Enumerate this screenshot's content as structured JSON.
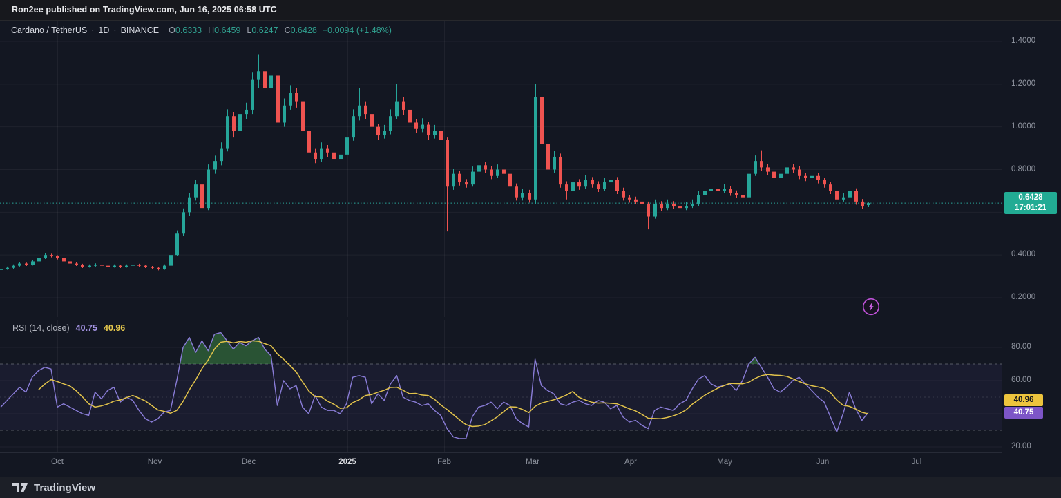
{
  "top_bar": {
    "text": "Ron2ee published on TradingView.com, Jun 16, 2025 06:58 UTC"
  },
  "header": {
    "symbol": "Cardano / TetherUS",
    "sep": "·",
    "interval": "1D",
    "exchange": "BINANCE",
    "ohlc": [
      {
        "k": "O",
        "v": "0.6333"
      },
      {
        "k": "H",
        "v": "0.6459"
      },
      {
        "k": "L",
        "v": "0.6247"
      },
      {
        "k": "C",
        "v": "0.6428"
      }
    ],
    "change": "+0.0094 (+1.48%)"
  },
  "price_scale": {
    "ticks": [
      "1.4000",
      "1.2000",
      "1.0000",
      "0.8000",
      "0.4000",
      "0.2000"
    ],
    "badge": {
      "price": "0.6428",
      "countdown": "17:01:21"
    }
  },
  "rsi_scale": {
    "ticks": [
      "80.00",
      "60.00",
      "20.00"
    ],
    "badge_ma": "40.96",
    "badge_rsi": "40.75"
  },
  "rsi_legend": {
    "label": "RSI (14, close)",
    "value_rsi": "40.75",
    "value_ma": "40.96"
  },
  "time_axis": {
    "labels": [
      "Oct",
      "Nov",
      "Dec",
      "2025",
      "Feb",
      "Mar",
      "Apr",
      "May",
      "Jun",
      "Jul"
    ],
    "emphasized": "2025"
  },
  "footer": {
    "brand": "TradingView"
  },
  "colors": {
    "background": "#131722",
    "up": "#26a69a",
    "down": "#ef5350",
    "price_line": "#2aa79a",
    "price_badge": "#22ab94",
    "rsi_line": "#8a7dd8",
    "rsi_ma_line": "#e2c34b",
    "rsi_badge": "#7d55c7",
    "rsi_ma_badge": "#edc43d",
    "overbought_fill": "rgba(76,175,80,0.40)",
    "band_fill": "rgba(133,105,223,0.07)",
    "grid": "rgba(255,255,255,0.05)",
    "level_dash": "rgba(150,153,163,0.50)"
  },
  "chart_data": [
    {
      "type": "candlestick",
      "title": "Cardano / TetherUS · 1D · BINANCE",
      "open": 0.6333,
      "high": 0.6459,
      "low": 0.6247,
      "close": 0.6428,
      "change": "+0.0094 (+1.48%)",
      "last_price": 0.6428,
      "countdown": "17:01:21",
      "x_axis": {
        "labels": [
          "Oct",
          "Nov",
          "Dec",
          "2025",
          "Feb",
          "Mar",
          "Apr",
          "May",
          "Jun",
          "Jul"
        ],
        "range": "mid-Sep 2024 → Jun 16 2025 (data), axis extends to Jul 2025"
      },
      "y_axis": {
        "ticks": [
          1.4,
          1.2,
          1.0,
          0.8,
          0.4,
          0.2
        ],
        "grid_prices": [
          1.4,
          1.2,
          1.0,
          0.8,
          0.6,
          0.4,
          0.2
        ],
        "ylim": [
          0.11,
          1.49
        ],
        "format": "0.0000"
      },
      "note": "139 candles, ~2-day aggregation of the daily series visible in the screenshot",
      "candles": [
        [
          0.33,
          0.341,
          0.326,
          0.335
        ],
        [
          0.335,
          0.346,
          0.331,
          0.34
        ],
        [
          0.34,
          0.356,
          0.336,
          0.35
        ],
        [
          0.35,
          0.366,
          0.346,
          0.36
        ],
        [
          0.36,
          0.364,
          0.349,
          0.355
        ],
        [
          0.355,
          0.376,
          0.351,
          0.37
        ],
        [
          0.37,
          0.391,
          0.366,
          0.385
        ],
        [
          0.385,
          0.408,
          0.381,
          0.4
        ],
        [
          0.4,
          0.406,
          0.389,
          0.395
        ],
        [
          0.395,
          0.399,
          0.379,
          0.385
        ],
        [
          0.385,
          0.389,
          0.364,
          0.37
        ],
        [
          0.37,
          0.374,
          0.354,
          0.36
        ],
        [
          0.36,
          0.365,
          0.349,
          0.355
        ],
        [
          0.355,
          0.359,
          0.339,
          0.345
        ],
        [
          0.345,
          0.356,
          0.341,
          0.35
        ],
        [
          0.35,
          0.361,
          0.346,
          0.355
        ],
        [
          0.355,
          0.359,
          0.344,
          0.35
        ],
        [
          0.35,
          0.354,
          0.339,
          0.345
        ],
        [
          0.345,
          0.356,
          0.341,
          0.35
        ],
        [
          0.35,
          0.354,
          0.339,
          0.345
        ],
        [
          0.345,
          0.356,
          0.341,
          0.35
        ],
        [
          0.35,
          0.361,
          0.346,
          0.355
        ],
        [
          0.355,
          0.359,
          0.344,
          0.35
        ],
        [
          0.35,
          0.354,
          0.339,
          0.345
        ],
        [
          0.345,
          0.349,
          0.334,
          0.34
        ],
        [
          0.34,
          0.344,
          0.328,
          0.335
        ],
        [
          0.335,
          0.356,
          0.331,
          0.35
        ],
        [
          0.35,
          0.412,
          0.346,
          0.4
        ],
        [
          0.4,
          0.515,
          0.395,
          0.5
        ],
        [
          0.5,
          0.618,
          0.49,
          0.6
        ],
        [
          0.6,
          0.69,
          0.585,
          0.67
        ],
        [
          0.67,
          0.752,
          0.655,
          0.73
        ],
        [
          0.73,
          0.74,
          0.6,
          0.62
        ],
        [
          0.62,
          0.824,
          0.61,
          0.8
        ],
        [
          0.8,
          0.865,
          0.78,
          0.84
        ],
        [
          0.84,
          0.927,
          0.82,
          0.9
        ],
        [
          0.9,
          1.082,
          0.885,
          1.05
        ],
        [
          1.05,
          1.07,
          0.95,
          0.98
        ],
        [
          0.98,
          1.092,
          0.96,
          1.06
        ],
        [
          1.06,
          1.113,
          1.035,
          1.08
        ],
        [
          1.08,
          1.257,
          1.06,
          1.22
        ],
        [
          1.22,
          1.34,
          1.18,
          1.26
        ],
        [
          1.26,
          1.28,
          1.15,
          1.18
        ],
        [
          1.18,
          1.277,
          1.16,
          1.24
        ],
        [
          1.24,
          1.25,
          0.96,
          1.02
        ],
        [
          1.02,
          1.133,
          1.0,
          1.1
        ],
        [
          1.1,
          1.195,
          1.08,
          1.16
        ],
        [
          1.16,
          1.18,
          1.09,
          1.12
        ],
        [
          1.12,
          1.13,
          0.955,
          0.98
        ],
        [
          0.98,
          0.99,
          0.79,
          0.88
        ],
        [
          0.88,
          0.9,
          0.83,
          0.85
        ],
        [
          0.85,
          0.927,
          0.835,
          0.9
        ],
        [
          0.9,
          0.915,
          0.86,
          0.88
        ],
        [
          0.88,
          0.895,
          0.83,
          0.85
        ],
        [
          0.85,
          0.896,
          0.835,
          0.87
        ],
        [
          0.87,
          0.979,
          0.855,
          0.95
        ],
        [
          0.95,
          1.082,
          0.935,
          1.05
        ],
        [
          1.05,
          1.18,
          1.03,
          1.1
        ],
        [
          1.1,
          1.12,
          1.035,
          1.06
        ],
        [
          1.06,
          1.075,
          0.975,
          1.0
        ],
        [
          1.0,
          1.015,
          0.94,
          0.96
        ],
        [
          0.96,
          1.009,
          0.945,
          0.98
        ],
        [
          0.98,
          1.082,
          0.965,
          1.05
        ],
        [
          1.05,
          1.2,
          1.035,
          1.12
        ],
        [
          1.12,
          1.14,
          1.055,
          1.08
        ],
        [
          1.08,
          1.095,
          1.0,
          1.02
        ],
        [
          1.02,
          1.035,
          0.97,
          0.99
        ],
        [
          0.99,
          1.04,
          0.975,
          1.01
        ],
        [
          1.01,
          1.025,
          0.94,
          0.96
        ],
        [
          0.96,
          1.009,
          0.945,
          0.98
        ],
        [
          0.98,
          0.995,
          0.92,
          0.94
        ],
        [
          0.94,
          0.95,
          0.51,
          0.72
        ],
        [
          0.72,
          0.803,
          0.705,
          0.78
        ],
        [
          0.78,
          0.795,
          0.725,
          0.74
        ],
        [
          0.74,
          0.755,
          0.715,
          0.73
        ],
        [
          0.73,
          0.814,
          0.72,
          0.79
        ],
        [
          0.79,
          0.845,
          0.775,
          0.82
        ],
        [
          0.82,
          0.835,
          0.785,
          0.8
        ],
        [
          0.8,
          0.815,
          0.755,
          0.77
        ],
        [
          0.77,
          0.824,
          0.76,
          0.8
        ],
        [
          0.8,
          0.815,
          0.765,
          0.78
        ],
        [
          0.78,
          0.795,
          0.705,
          0.72
        ],
        [
          0.72,
          0.735,
          0.655,
          0.67
        ],
        [
          0.67,
          0.711,
          0.655,
          0.69
        ],
        [
          0.69,
          0.705,
          0.645,
          0.66
        ],
        [
          0.66,
          1.2,
          0.64,
          1.14
        ],
        [
          1.14,
          1.16,
          0.9,
          0.92
        ],
        [
          0.92,
          0.94,
          0.785,
          0.8
        ],
        [
          0.8,
          0.886,
          0.785,
          0.86
        ],
        [
          0.86,
          0.875,
          0.715,
          0.73
        ],
        [
          0.73,
          0.745,
          0.66,
          0.7
        ],
        [
          0.7,
          0.762,
          0.69,
          0.74
        ],
        [
          0.74,
          0.755,
          0.705,
          0.72
        ],
        [
          0.72,
          0.773,
          0.71,
          0.75
        ],
        [
          0.75,
          0.765,
          0.715,
          0.73
        ],
        [
          0.73,
          0.745,
          0.695,
          0.71
        ],
        [
          0.71,
          0.762,
          0.7,
          0.74
        ],
        [
          0.74,
          0.773,
          0.73,
          0.75
        ],
        [
          0.75,
          0.765,
          0.685,
          0.7
        ],
        [
          0.7,
          0.715,
          0.655,
          0.67
        ],
        [
          0.67,
          0.68,
          0.645,
          0.66
        ],
        [
          0.66,
          0.673,
          0.637,
          0.65
        ],
        [
          0.65,
          0.662,
          0.627,
          0.64
        ],
        [
          0.64,
          0.65,
          0.52,
          0.58
        ],
        [
          0.58,
          0.66,
          0.57,
          0.64
        ],
        [
          0.64,
          0.652,
          0.607,
          0.62
        ],
        [
          0.62,
          0.66,
          0.61,
          0.64
        ],
        [
          0.64,
          0.652,
          0.617,
          0.63
        ],
        [
          0.63,
          0.642,
          0.607,
          0.62
        ],
        [
          0.62,
          0.649,
          0.61,
          0.63
        ],
        [
          0.63,
          0.66,
          0.62,
          0.64
        ],
        [
          0.64,
          0.7,
          0.63,
          0.68
        ],
        [
          0.68,
          0.721,
          0.67,
          0.7
        ],
        [
          0.7,
          0.732,
          0.69,
          0.71
        ],
        [
          0.71,
          0.722,
          0.687,
          0.7
        ],
        [
          0.7,
          0.732,
          0.69,
          0.71
        ],
        [
          0.71,
          0.722,
          0.677,
          0.69
        ],
        [
          0.69,
          0.702,
          0.667,
          0.68
        ],
        [
          0.68,
          0.692,
          0.652,
          0.67
        ],
        [
          0.67,
          0.804,
          0.66,
          0.78
        ],
        [
          0.78,
          0.866,
          0.77,
          0.84
        ],
        [
          0.84,
          0.89,
          0.795,
          0.81
        ],
        [
          0.81,
          0.825,
          0.775,
          0.79
        ],
        [
          0.79,
          0.805,
          0.745,
          0.76
        ],
        [
          0.76,
          0.804,
          0.75,
          0.78
        ],
        [
          0.78,
          0.85,
          0.77,
          0.81
        ],
        [
          0.81,
          0.825,
          0.785,
          0.8
        ],
        [
          0.8,
          0.815,
          0.755,
          0.77
        ],
        [
          0.77,
          0.784,
          0.746,
          0.76
        ],
        [
          0.76,
          0.794,
          0.75,
          0.77
        ],
        [
          0.77,
          0.783,
          0.735,
          0.75
        ],
        [
          0.75,
          0.763,
          0.715,
          0.73
        ],
        [
          0.73,
          0.742,
          0.685,
          0.7
        ],
        [
          0.7,
          0.712,
          0.615,
          0.66
        ],
        [
          0.66,
          0.69,
          0.65,
          0.67
        ],
        [
          0.67,
          0.73,
          0.66,
          0.7
        ],
        [
          0.7,
          0.712,
          0.635,
          0.65
        ],
        [
          0.65,
          0.662,
          0.615,
          0.63
        ],
        [
          0.6333,
          0.6459,
          0.6247,
          0.6428
        ]
      ]
    },
    {
      "type": "line",
      "title": "RSI (14, close)",
      "y_axis": {
        "ticks": [
          80,
          60,
          20
        ],
        "ylim": [
          17,
          97
        ]
      },
      "levels": {
        "upper": 70,
        "middle": 50,
        "lower": 30
      },
      "series": [
        {
          "name": "RSI",
          "last": 40.75,
          "values": [
            44,
            48,
            52,
            56,
            53,
            62,
            66,
            68,
            67,
            44,
            46,
            44,
            42,
            40,
            39,
            53,
            49,
            54,
            56,
            47,
            50,
            48,
            42,
            37,
            35,
            37,
            41,
            42,
            60,
            80,
            86,
            77,
            84,
            78,
            88,
            89,
            84,
            79,
            83,
            81,
            84,
            86,
            79,
            75,
            45,
            60,
            55,
            57,
            44,
            40,
            51,
            44,
            42,
            42,
            40,
            46,
            62,
            63,
            62,
            46,
            52,
            48,
            58,
            63,
            50,
            48,
            47,
            45,
            46,
            42,
            39,
            31,
            26,
            25,
            25,
            38,
            44,
            45,
            47,
            43,
            47,
            45,
            37,
            34,
            32,
            73,
            57,
            54,
            52,
            46,
            45,
            47,
            48,
            46,
            45,
            48,
            47,
            43,
            45,
            38,
            35,
            36,
            33,
            31,
            42,
            44,
            43,
            42,
            46,
            48,
            55,
            61,
            63,
            58,
            56,
            57,
            58,
            54,
            60,
            70,
            74,
            68,
            62,
            55,
            53,
            56,
            60,
            62,
            58,
            54,
            50,
            47,
            38,
            29,
            40,
            53,
            43,
            36,
            40.75
          ]
        },
        {
          "name": "RSI-based MA",
          "last": 40.96,
          "smoothing": {
            "type": "SMA",
            "window": 7,
            "note": "computed from RSI values at render time"
          }
        }
      ]
    }
  ]
}
